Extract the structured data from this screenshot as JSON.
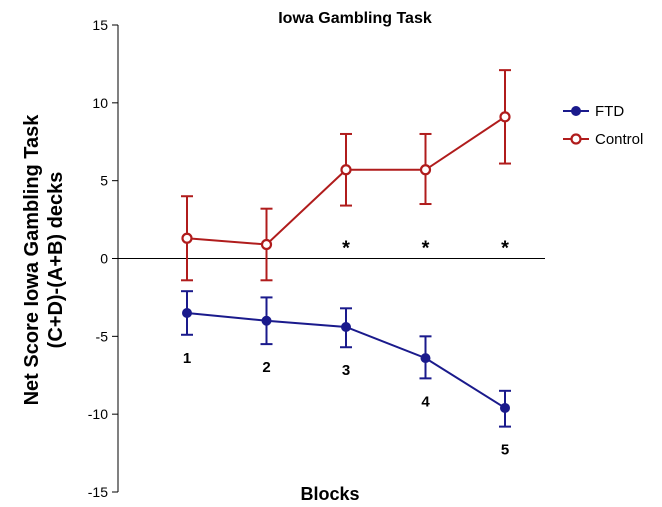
{
  "chart_data": {
    "type": "line",
    "title": "Iowa Gambling Task",
    "xlabel": "Blocks",
    "ylabel_line1": "Net Score Iowa Gambling Task",
    "ylabel_line2": "(C+D)-(A+B) decks",
    "ylim": [
      -15,
      15
    ],
    "yticks": [
      -15,
      -10,
      -5,
      0,
      5,
      10,
      15
    ],
    "ytick_labels": [
      "-15",
      "-10",
      "-5",
      "0",
      "5",
      "10",
      "15"
    ],
    "x": [
      1,
      2,
      3,
      4,
      5
    ],
    "block_labels": [
      "1",
      "2",
      "3",
      "4",
      "5"
    ],
    "significance": [
      {
        "x": 3,
        "label": "*"
      },
      {
        "x": 4,
        "label": "*"
      },
      {
        "x": 5,
        "label": "*"
      }
    ],
    "legend_position": "right",
    "series": [
      {
        "name": "FTD",
        "color": "#1a1a8c",
        "marker": "filled-circle",
        "values": [
          -3.5,
          -4.0,
          -4.4,
          -6.4,
          -9.6
        ],
        "err_low": [
          -4.9,
          -5.5,
          -5.7,
          -7.7,
          -10.8
        ],
        "err_high": [
          -2.1,
          -2.5,
          -3.2,
          -5.0,
          -8.5
        ]
      },
      {
        "name": "Control",
        "color": "#b01c1c",
        "marker": "open-circle",
        "values": [
          1.3,
          0.9,
          5.7,
          5.7,
          9.1
        ],
        "err_low": [
          -1.4,
          -1.4,
          3.4,
          3.5,
          6.1
        ],
        "err_high": [
          4.0,
          3.2,
          8.0,
          8.0,
          12.1
        ]
      }
    ]
  }
}
